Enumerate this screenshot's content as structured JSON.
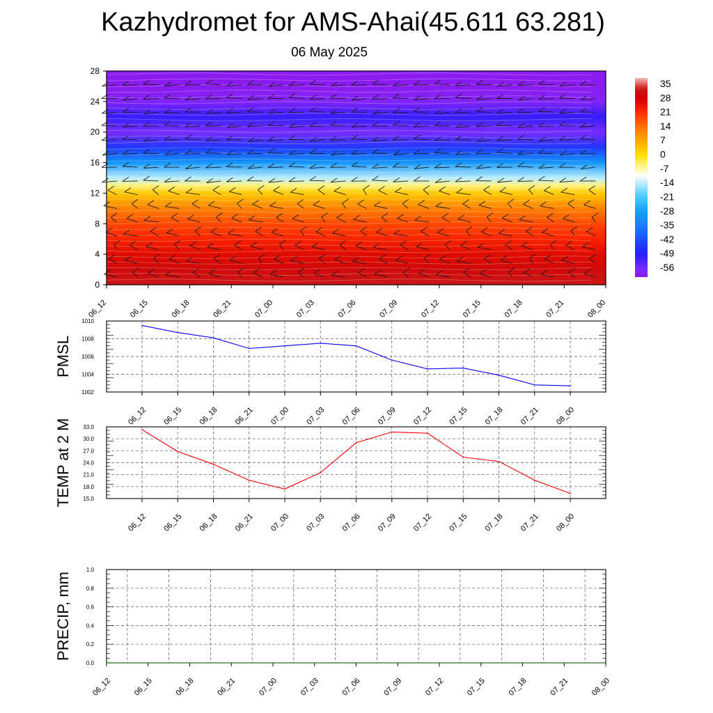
{
  "header": {
    "title": "Kazhydromet for AMS-Ahai(45.611 63.281)",
    "date": "06 May 2025"
  },
  "chart_data": [
    {
      "id": "cross-section",
      "type": "heatmap",
      "title": "",
      "ylim": [
        0,
        28
      ],
      "yticks": [
        0,
        4,
        8,
        12,
        16,
        20,
        24,
        28
      ],
      "xticks": [
        "06_12",
        "06_15",
        "06_18",
        "06_21",
        "07_00",
        "07_03",
        "07_06",
        "07_09",
        "07_12",
        "07_15",
        "07_18",
        "07_21",
        "08_00"
      ],
      "colorbar": {
        "labels": [
          "35",
          "28",
          "21",
          "14",
          "7",
          "0",
          "-7",
          "-14",
          "-21",
          "-28",
          "-35",
          "-42",
          "-49",
          "-56"
        ],
        "range": [
          -60,
          38
        ]
      },
      "temperature_profile": {
        "heights": [
          0,
          2,
          4,
          6,
          8,
          10,
          12,
          13,
          14,
          16,
          18,
          20,
          22,
          24,
          26,
          28
        ],
        "values": [
          33,
          30,
          26,
          22,
          18,
          12,
          3,
          -5,
          -14,
          -30,
          -45,
          -56,
          -50,
          -58,
          -60,
          -60
        ]
      },
      "wind_barbs": true,
      "grid": false
    },
    {
      "id": "pmsl",
      "type": "line",
      "ylabel": "PMSL",
      "ylim": [
        1002,
        1010
      ],
      "yticks": [
        "1002",
        "1004",
        "1006",
        "1008",
        "1010"
      ],
      "xticks": [
        "06_12",
        "06_15",
        "06_18",
        "06_21",
        "07_00",
        "07_03",
        "07_06",
        "07_09",
        "07_12",
        "07_15",
        "07_18",
        "07_21",
        "08_00"
      ],
      "series": [
        {
          "color": "#0000ff",
          "values": [
            1009.5,
            1008.7,
            1008.1,
            1006.9,
            1007.2,
            1007.5,
            1007.2,
            1005.6,
            1004.6,
            1004.7,
            1003.9,
            1002.8,
            1002.7
          ]
        }
      ],
      "grid": true
    },
    {
      "id": "temp2m",
      "type": "line",
      "ylabel": "TEMP at 2 M",
      "ylim": [
        15.0,
        33.0
      ],
      "yticks": [
        "15.0",
        "18.0",
        "21.0",
        "24.0",
        "27.0",
        "30.0",
        "33.0"
      ],
      "xticks": [
        "06_12",
        "06_15",
        "06_18",
        "06_21",
        "07_00",
        "07_03",
        "07_06",
        "07_09",
        "07_12",
        "07_15",
        "07_18",
        "07_21",
        "08_00"
      ],
      "series": [
        {
          "color": "#ff0000",
          "values": [
            32.3,
            26.8,
            23.6,
            19.6,
            17.4,
            21.5,
            29.0,
            31.7,
            31.4,
            25.4,
            24.3,
            19.6,
            16.3
          ]
        }
      ],
      "grid": true
    },
    {
      "id": "precip",
      "type": "line",
      "ylabel": "PRECIP, mm",
      "ylim": [
        0.0,
        1.0
      ],
      "yticks": [
        "0.0",
        "0.2",
        "0.4",
        "0.6",
        "0.8",
        "1.0"
      ],
      "xticks": [
        "06_12",
        "06_15",
        "06_18",
        "06_21",
        "07_00",
        "07_03",
        "07_06",
        "07_09",
        "07_12",
        "07_15",
        "07_18",
        "07_21",
        "08_00"
      ],
      "series": [
        {
          "color": "#006400",
          "values": [
            0,
            0,
            0,
            0,
            0,
            0,
            0,
            0,
            0,
            0,
            0,
            0,
            0
          ]
        }
      ],
      "grid": true
    }
  ]
}
